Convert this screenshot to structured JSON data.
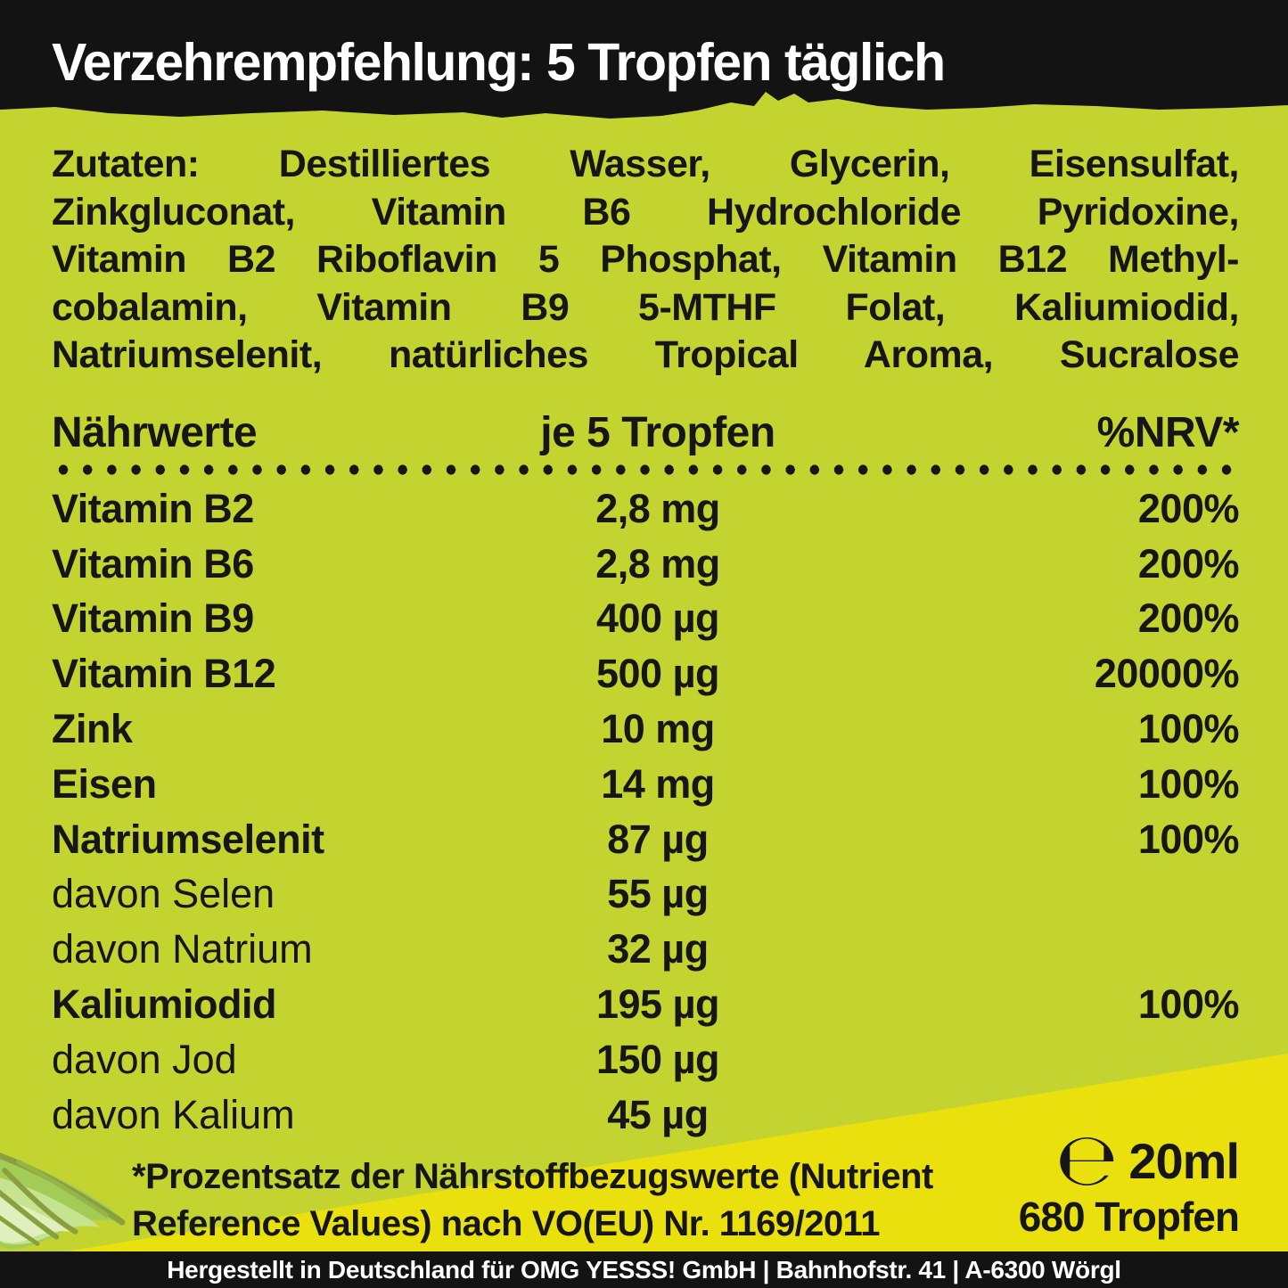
{
  "colors": {
    "background": "#c3d330",
    "accent_yellow": "#e9e00d",
    "bar_black": "#131313",
    "text_black": "#161616",
    "text_white": "#ffffff",
    "leaf_green": "#a3cc57",
    "leaf_green_light": "#c6e390",
    "leaf_green_pale": "#e1efbc",
    "leaf_vein_olive": "#8aa03f"
  },
  "header": {
    "title": "Verzehrempfehlung: 5 Tropfen täglich"
  },
  "ingredients": {
    "bold_label": "Zutaten:",
    "line1_rest": " Destilliertes Wasser, Glycerin, Eisensulfat,",
    "lines": [
      "Zinkgluconat, Vitamin B6 Hydrochloride Pyridoxine,",
      "Vitamin B2 Riboflavin 5 Phosphat, Vitamin B12 Methyl-",
      "cobalamin, Vitamin B9 5-MTHF Folat, Kaliumiodid,",
      "Natriumselenit, natürliches Tropical Aroma, Sucralose"
    ]
  },
  "table": {
    "headers": [
      "Nährwerte",
      "je 5 Tropfen",
      "%NRV*"
    ],
    "rows": [
      {
        "name": "Vitamin B2",
        "amount": "2,8 mg",
        "nrv": "200%",
        "bold": true
      },
      {
        "name": "Vitamin B6",
        "amount": "2,8 mg",
        "nrv": "200%",
        "bold": true
      },
      {
        "name": "Vitamin B9",
        "amount": "400 µg",
        "nrv": "200%",
        "bold": true
      },
      {
        "name": "Vitamin B12",
        "amount": "500 µg",
        "nrv": "20000%",
        "bold": true
      },
      {
        "name": "Zink",
        "amount": "10 mg",
        "nrv": "100%",
        "bold": true
      },
      {
        "name": "Eisen",
        "amount": "14 mg",
        "nrv": "100%",
        "bold": true
      },
      {
        "name": "Natriumselenit",
        "amount": "87 µg",
        "nrv": "100%",
        "bold": true
      },
      {
        "name": "davon Selen",
        "amount": "55 µg",
        "nrv": "",
        "bold": false
      },
      {
        "name": "davon Natrium",
        "amount": "32 µg",
        "nrv": "",
        "bold": false
      },
      {
        "name": "Kaliumiodid",
        "amount": "195 µg",
        "nrv": "100%",
        "bold": true
      },
      {
        "name": "davon Jod",
        "amount": "150 µg",
        "nrv": "",
        "bold": false
      },
      {
        "name": "davon Kalium",
        "amount": "45 µg",
        "nrv": "",
        "bold": false
      }
    ]
  },
  "footnote": {
    "lines": [
      "*Prozentsatz der Nährstoffbezugswerte (Nutrient",
      "Reference Values) nach VO(EU) Nr. 1169/2011"
    ]
  },
  "volume": {
    "e_mark": "℮",
    "size": "20ml",
    "drops": "680 Tropfen"
  },
  "footer": {
    "text": "Hergestellt in Deutschland für OMG YESSS! GmbH | Bahnhofstr. 41 | A-6300 Wörgl"
  },
  "icons": {
    "leaf": "leaf-illustration",
    "e_mark": "estimated-sign"
  }
}
